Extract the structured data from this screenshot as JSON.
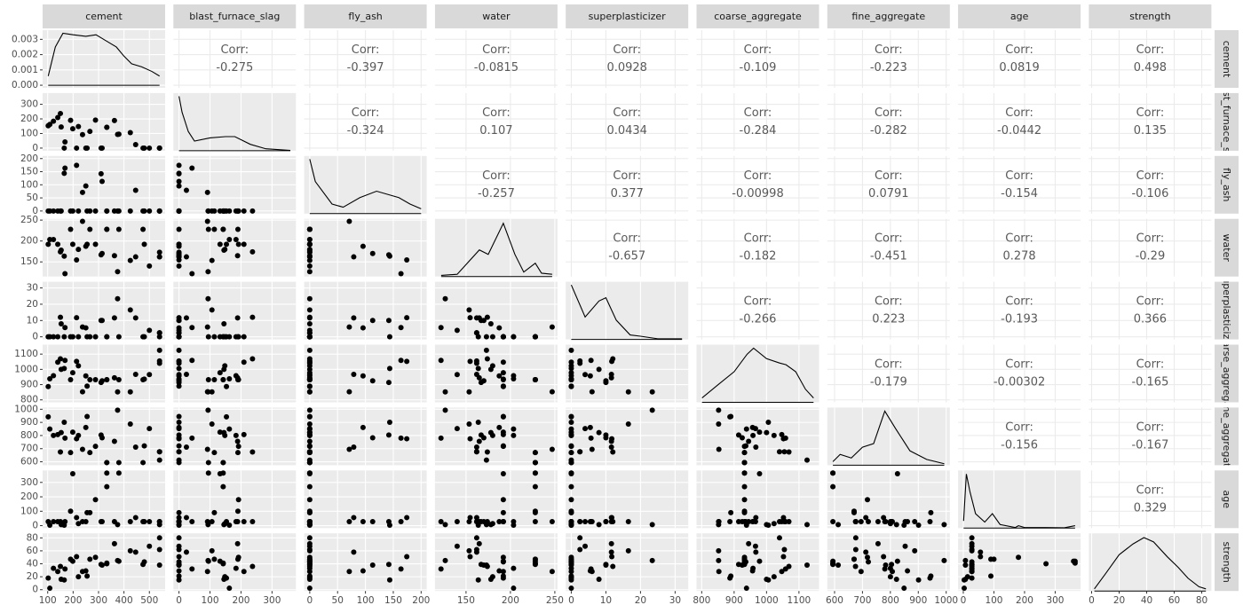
{
  "chart_data": {
    "type": "pairs",
    "variables": [
      "cement",
      "blast_furnace_slag",
      "fly_ash",
      "water",
      "superplasticizer",
      "coarse_aggregate",
      "fine_aggregate",
      "age",
      "strength"
    ],
    "corr_label": "Corr:",
    "correlations": [
      [
        -0.275,
        -0.397,
        -0.0815,
        0.0928,
        -0.109,
        -0.223,
        0.0819,
        0.498
      ],
      [
        -0.324,
        0.107,
        0.0434,
        -0.284,
        -0.282,
        -0.0442,
        0.135
      ],
      [
        -0.257,
        0.377,
        -0.00998,
        0.0791,
        -0.154,
        -0.106
      ],
      [
        -0.657,
        -0.182,
        -0.451,
        0.278,
        -0.29
      ],
      [
        -0.266,
        0.223,
        -0.193,
        0.366
      ],
      [
        -0.179,
        -0.00302,
        -0.165
      ],
      [
        -0.156,
        -0.167
      ],
      [
        0.329
      ]
    ],
    "axes": [
      {
        "lim": [
          80,
          562
        ],
        "ticks": [
          100,
          200,
          300,
          400,
          500
        ]
      },
      {
        "lim": [
          -18,
          377
        ],
        "ticks": [
          0,
          100,
          200,
          300
        ]
      },
      {
        "lim": [
          -10,
          210
        ],
        "ticks": [
          0,
          50,
          100,
          150,
          200
        ]
      },
      {
        "lim": [
          115,
          253
        ],
        "ticks": [
          150,
          200,
          250
        ]
      },
      {
        "lim": [
          -1.6,
          33.8
        ],
        "ticks": [
          0,
          10,
          20,
          30
        ]
      },
      {
        "lim": [
          784,
          1162
        ],
        "ticks": [
          800,
          900,
          1000,
          1100
        ]
      },
      {
        "lim": [
          574,
          1013
        ],
        "ticks": [
          600,
          700,
          800,
          900,
          1000
        ]
      },
      {
        "lim": [
          -17,
          383
        ],
        "ticks": [
          0,
          100,
          200,
          300
        ]
      },
      {
        "lim": [
          -2,
          87
        ],
        "ticks": [
          0,
          20,
          40,
          60,
          80
        ]
      }
    ],
    "density_axis": {
      "ylim": [
        -0.00017,
        0.0036
      ],
      "yticks": [
        {
          "value": 0,
          "label": "0.000"
        },
        {
          "value": 0.001,
          "label": "0.001"
        },
        {
          "value": 0.002,
          "label": "0.002"
        },
        {
          "value": 0.003,
          "label": "0.003"
        }
      ]
    },
    "densities": [
      {
        "x": [
          102,
          130,
          160,
          200,
          250,
          290,
          330,
          370,
          400,
          430,
          470,
          510,
          540
        ],
        "y": [
          0.0006,
          0.0025,
          0.0034,
          0.0033,
          0.0032,
          0.0033,
          0.0029,
          0.0025,
          0.0019,
          0.0014,
          0.0012,
          0.0009,
          0.0006
        ]
      },
      {
        "x": [
          0,
          10,
          30,
          50,
          100,
          150,
          180,
          230,
          280,
          359
        ],
        "y": [
          0.0085,
          0.006,
          0.003,
          0.0015,
          0.002,
          0.0022,
          0.0022,
          0.001,
          0.0003,
          5e-05
        ],
        "ylim": [
          0,
          0.009
        ]
      },
      {
        "x": [
          0,
          10,
          40,
          60,
          90,
          120,
          160,
          180,
          200
        ],
        "y": [
          0.017,
          0.01,
          0.003,
          0.002,
          0.005,
          0.007,
          0.005,
          0.003,
          0.0015
        ],
        "ylim": [
          0,
          0.018
        ]
      },
      {
        "x": [
          122,
          140,
          165,
          175,
          192,
          205,
          215,
          228,
          235,
          247
        ],
        "y": [
          0.0005,
          0.001,
          0.012,
          0.01,
          0.024,
          0.01,
          0.002,
          0.006,
          0.0015,
          0.001
        ],
        "ylim": [
          0,
          0.026
        ]
      },
      {
        "x": [
          0,
          4,
          8,
          10,
          13,
          17,
          20,
          25,
          32
        ],
        "y": [
          0.085,
          0.035,
          0.06,
          0.065,
          0.03,
          0.007,
          0.005,
          0.001,
          0.001
        ],
        "ylim": [
          0,
          0.09
        ]
      },
      {
        "x": [
          801,
          850,
          900,
          940,
          960,
          1000,
          1040,
          1060,
          1090,
          1120,
          1145
        ],
        "y": [
          0.0005,
          0.002,
          0.0035,
          0.0055,
          0.0062,
          0.005,
          0.0045,
          0.0043,
          0.0035,
          0.0015,
          0.0005
        ],
        "ylim": [
          0,
          0.0066
        ]
      },
      {
        "x": [
          594,
          620,
          660,
          700,
          740,
          780,
          820,
          870,
          930,
          993
        ],
        "y": [
          0.0005,
          0.0015,
          0.001,
          0.0025,
          0.003,
          0.0075,
          0.005,
          0.002,
          0.0008,
          0.0002
        ],
        "ylim": [
          0,
          0.008
        ]
      },
      {
        "x": [
          1,
          10,
          22,
          40,
          70,
          95,
          120,
          170,
          180,
          200,
          270,
          330,
          365
        ],
        "y": [
          0.006,
          0.045,
          0.03,
          0.012,
          0.005,
          0.012,
          0.003,
          0.0005,
          0.002,
          0.0005,
          0.0005,
          0.0003,
          0.002
        ],
        "ylim": [
          0,
          0.048
        ]
      },
      {
        "x": [
          2,
          10,
          20,
          30,
          38,
          45,
          55,
          63,
          70,
          78,
          83
        ],
        "y": [
          0.001,
          0.008,
          0.017,
          0.022,
          0.025,
          0.023,
          0.016,
          0.011,
          0.006,
          0.002,
          0.001
        ],
        "ylim": [
          0,
          0.027
        ]
      }
    ],
    "observations": [
      [
        540,
        0,
        0,
        162,
        2.5,
        1040,
        676,
        28,
        80
      ],
      [
        540,
        0,
        0,
        162,
        2.5,
        1055,
        676,
        28,
        62
      ],
      [
        332.5,
        142.5,
        0,
        228,
        0,
        932,
        594,
        270,
        40
      ],
      [
        332.5,
        142.5,
        0,
        228,
        0,
        932,
        594,
        365,
        41
      ],
      [
        198.6,
        132.4,
        0,
        192,
        0,
        978.4,
        825.5,
        360,
        44
      ],
      [
        266,
        114,
        0,
        228,
        0,
        932,
        670,
        90,
        47
      ],
      [
        380,
        95,
        0,
        228,
        0,
        932,
        594,
        365,
        44
      ],
      [
        475,
        0,
        0,
        228,
        0,
        932,
        594,
        28,
        39
      ],
      [
        139.6,
        209.4,
        0,
        192,
        0,
        1047,
        806.9,
        28,
        28
      ],
      [
        250,
        0,
        95.7,
        187.4,
        5.5,
        956.9,
        861.2,
        28,
        29
      ],
      [
        102,
        153,
        0,
        192,
        0,
        887,
        942,
        28,
        18
      ],
      [
        168,
        42,
        163.8,
        121.8,
        5.7,
        1058.7,
        780.1,
        28,
        32
      ],
      [
        310,
        0,
        142,
        167,
        10,
        914,
        804,
        28,
        39
      ],
      [
        150,
        237,
        0,
        174,
        12,
        1069,
        675,
        28,
        36
      ],
      [
        425,
        106.3,
        0,
        153.5,
        16.5,
        852.1,
        887.1,
        28,
        60
      ],
      [
        375,
        93.8,
        0,
        126.6,
        23.4,
        852.1,
        992.6,
        7,
        45
      ],
      [
        480,
        0,
        0,
        192,
        0,
        936,
        721,
        28,
        43
      ],
      [
        237,
        92,
        71,
        247,
        6,
        853,
        695,
        28,
        28
      ],
      [
        213.5,
        0,
        174.2,
        154.6,
        11.7,
        1052.3,
        775.5,
        56,
        51
      ],
      [
        446,
        24,
        79,
        162,
        11.6,
        967,
        712,
        56,
        58
      ],
      [
        153,
        145,
        0,
        178,
        8,
        1000,
        822,
        7,
        16
      ],
      [
        255,
        0,
        0,
        192,
        0,
        889.8,
        945,
        90,
        21
      ],
      [
        362.6,
        189,
        0,
        164.9,
        11.6,
        944.7,
        755.8,
        28,
        71
      ],
      [
        314,
        0,
        113,
        170,
        10,
        925,
        783,
        28,
        38
      ],
      [
        165,
        0,
        143.6,
        163.8,
        0,
        1005.6,
        900.9,
        3,
        15
      ],
      [
        288,
        192,
        0,
        192,
        0,
        932,
        717.8,
        180,
        50
      ],
      [
        500,
        0,
        0,
        140,
        4,
        966,
        853,
        28,
        67
      ],
      [
        190,
        190,
        0,
        228,
        0,
        932,
        670,
        100,
        47
      ],
      [
        540,
        0,
        0,
        173,
        0,
        1125,
        613,
        7,
        38
      ],
      [
        220.8,
        147.8,
        0,
        180,
        0,
        1023.2,
        800.2,
        14,
        20
      ],
      [
        108.3,
        162.4,
        0,
        203.5,
        0,
        938.2,
        849,
        3,
        2.3
      ],
      [
        122.6,
        183.9,
        0,
        203.5,
        0,
        958.2,
        800.1,
        28,
        33
      ]
    ]
  }
}
